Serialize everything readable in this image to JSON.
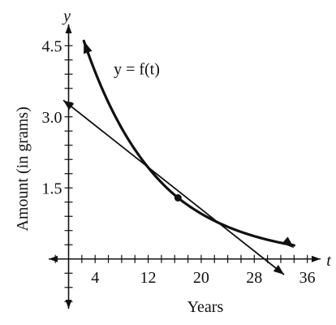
{
  "chart_data": {
    "type": "line",
    "xlabel": "Years",
    "ylabel": "Amount (in grams)",
    "x_axis_var": "t",
    "y_axis_var": "y",
    "xlim": [
      -3,
      38
    ],
    "ylim": [
      -1.05,
      4.95
    ],
    "x_tick_labels": [
      4,
      12,
      20,
      28,
      36
    ],
    "y_tick_labels": [
      "1.5",
      "3.0",
      "4.5"
    ],
    "x_minor_step": 2,
    "y_minor_step": 0.3,
    "grid": false,
    "curve": {
      "label": "y = f(t)",
      "start": [
        2.3,
        4.6
      ],
      "end": [
        34,
        0.23
      ]
    },
    "tangent_line": {
      "start": [
        -0.8,
        3.35
      ],
      "end": [
        32.5,
        -0.33
      ]
    },
    "point_of_tangency": [
      16.5,
      1.29
    ],
    "colors": {
      "ink": "#111111"
    }
  }
}
